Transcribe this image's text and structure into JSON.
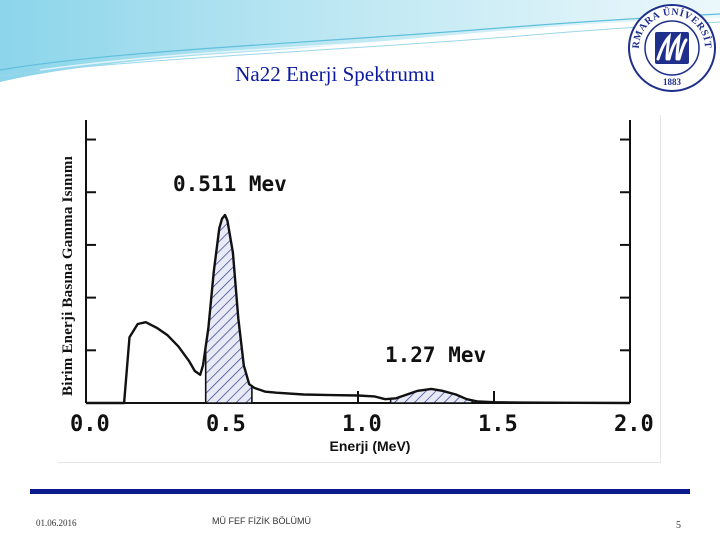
{
  "slide": {
    "title": "Na22 Enerji Spektrumu",
    "footer_date": "01.06.2016",
    "footer_dept": "MÜ FEF FİZİK BÖLÜMÜ",
    "page_number": "5"
  },
  "logo": {
    "text": "MARMARA ÜNİVERSİTESİ",
    "year": "1883",
    "color": "#1e2f8c"
  },
  "chart_data": {
    "type": "line",
    "xlabel": "Enerji (MeV)",
    "ylabel": "Birim Enerji Basına Gamma Isınımı",
    "xlim": [
      0.0,
      2.0
    ],
    "x_ticks": [
      "0.0",
      "0.5",
      "1.0",
      "1.5",
      "2.0"
    ],
    "y_ticks_labeled": false,
    "grid": false,
    "annotations": [
      {
        "text": "0.511 Mev",
        "x": 0.511
      },
      {
        "text": "1.27 Mev",
        "x": 1.27
      }
    ],
    "peaks": [
      {
        "name": "0.511 Mev",
        "shaded_from": 0.44,
        "shaded_to": 0.61
      },
      {
        "name": "1.27 Mev",
        "shaded_from": 1.12,
        "shaded_to": 1.42
      }
    ],
    "series": [
      {
        "x": [
          0.0,
          0.14,
          0.16,
          0.19,
          0.22,
          0.26,
          0.3,
          0.34,
          0.38,
          0.4,
          0.42,
          0.43,
          0.45,
          0.47,
          0.49,
          0.5,
          0.511,
          0.52,
          0.54,
          0.56,
          0.58,
          0.6,
          0.62,
          0.66,
          0.7,
          0.8,
          0.9,
          1.0,
          1.06,
          1.1,
          1.14,
          1.18,
          1.22,
          1.27,
          1.31,
          1.36,
          1.4,
          1.44,
          1.5,
          1.6,
          1.8,
          2.0
        ],
        "y": [
          0.0,
          0.0,
          0.35,
          0.42,
          0.43,
          0.4,
          0.36,
          0.3,
          0.22,
          0.17,
          0.15,
          0.2,
          0.4,
          0.7,
          0.93,
          0.98,
          1.0,
          0.97,
          0.8,
          0.45,
          0.2,
          0.1,
          0.08,
          0.06,
          0.055,
          0.045,
          0.042,
          0.04,
          0.035,
          0.02,
          0.025,
          0.045,
          0.065,
          0.075,
          0.065,
          0.045,
          0.02,
          0.008,
          0.004,
          0.002,
          0.001,
          0.0
        ]
      }
    ]
  }
}
